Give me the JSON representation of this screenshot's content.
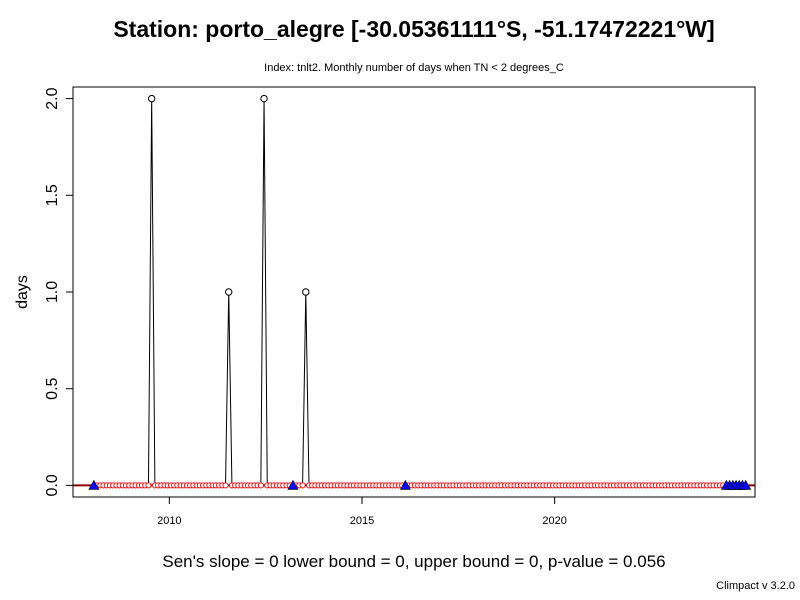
{
  "chart_data": {
    "type": "line",
    "title": "Station: porto_alegre [-30.05361111°S, -51.17472221°W]",
    "subtitle": "Index: tnlt2. Monthly number of days when TN < 2 degrees_C",
    "xlabel": "",
    "ylabel": "days",
    "xlim": [
      2007.5,
      2025.2
    ],
    "ylim": [
      -0.06,
      2.06
    ],
    "xticks": [
      2010,
      2015,
      2020
    ],
    "xtick_labels": [
      "2010",
      "2015",
      "2020"
    ],
    "yticks": [
      0.0,
      0.5,
      1.0,
      1.5,
      2.0
    ],
    "ytick_labels": [
      "0.0",
      "0.5",
      "1.0",
      "1.5",
      "2.0"
    ],
    "grid": false,
    "legend": "none",
    "series": [
      {
        "start": "2008-01",
        "end": "2024-12",
        "nonzero": [
          {
            "month": "2009-07",
            "value": 2
          },
          {
            "month": "2011-07",
            "value": 1
          },
          {
            "month": "2012-06",
            "value": 2
          },
          {
            "month": "2013-07",
            "value": 1
          }
        ],
        "missing": [
          "2008-01",
          "2013-03",
          "2016-02",
          "2024-06",
          "2024-07",
          "2024-08",
          "2024-09",
          "2024-10",
          "2024-11",
          "2024-12"
        ]
      }
    ],
    "trend": {
      "sen_slope": 0,
      "intercept": 0,
      "color": "#8b0000"
    },
    "colors": {
      "line": "#000000",
      "points": "#000000",
      "zero_points": "#ff0000",
      "missing_marker": "#0000ff",
      "trend_line": "#8b0000"
    }
  },
  "stats_text": "Sen's slope = 0   lower bound = 0,   upper bound = 0,   p-value = 0.056",
  "version_text": "Climpact v 3.2.0"
}
